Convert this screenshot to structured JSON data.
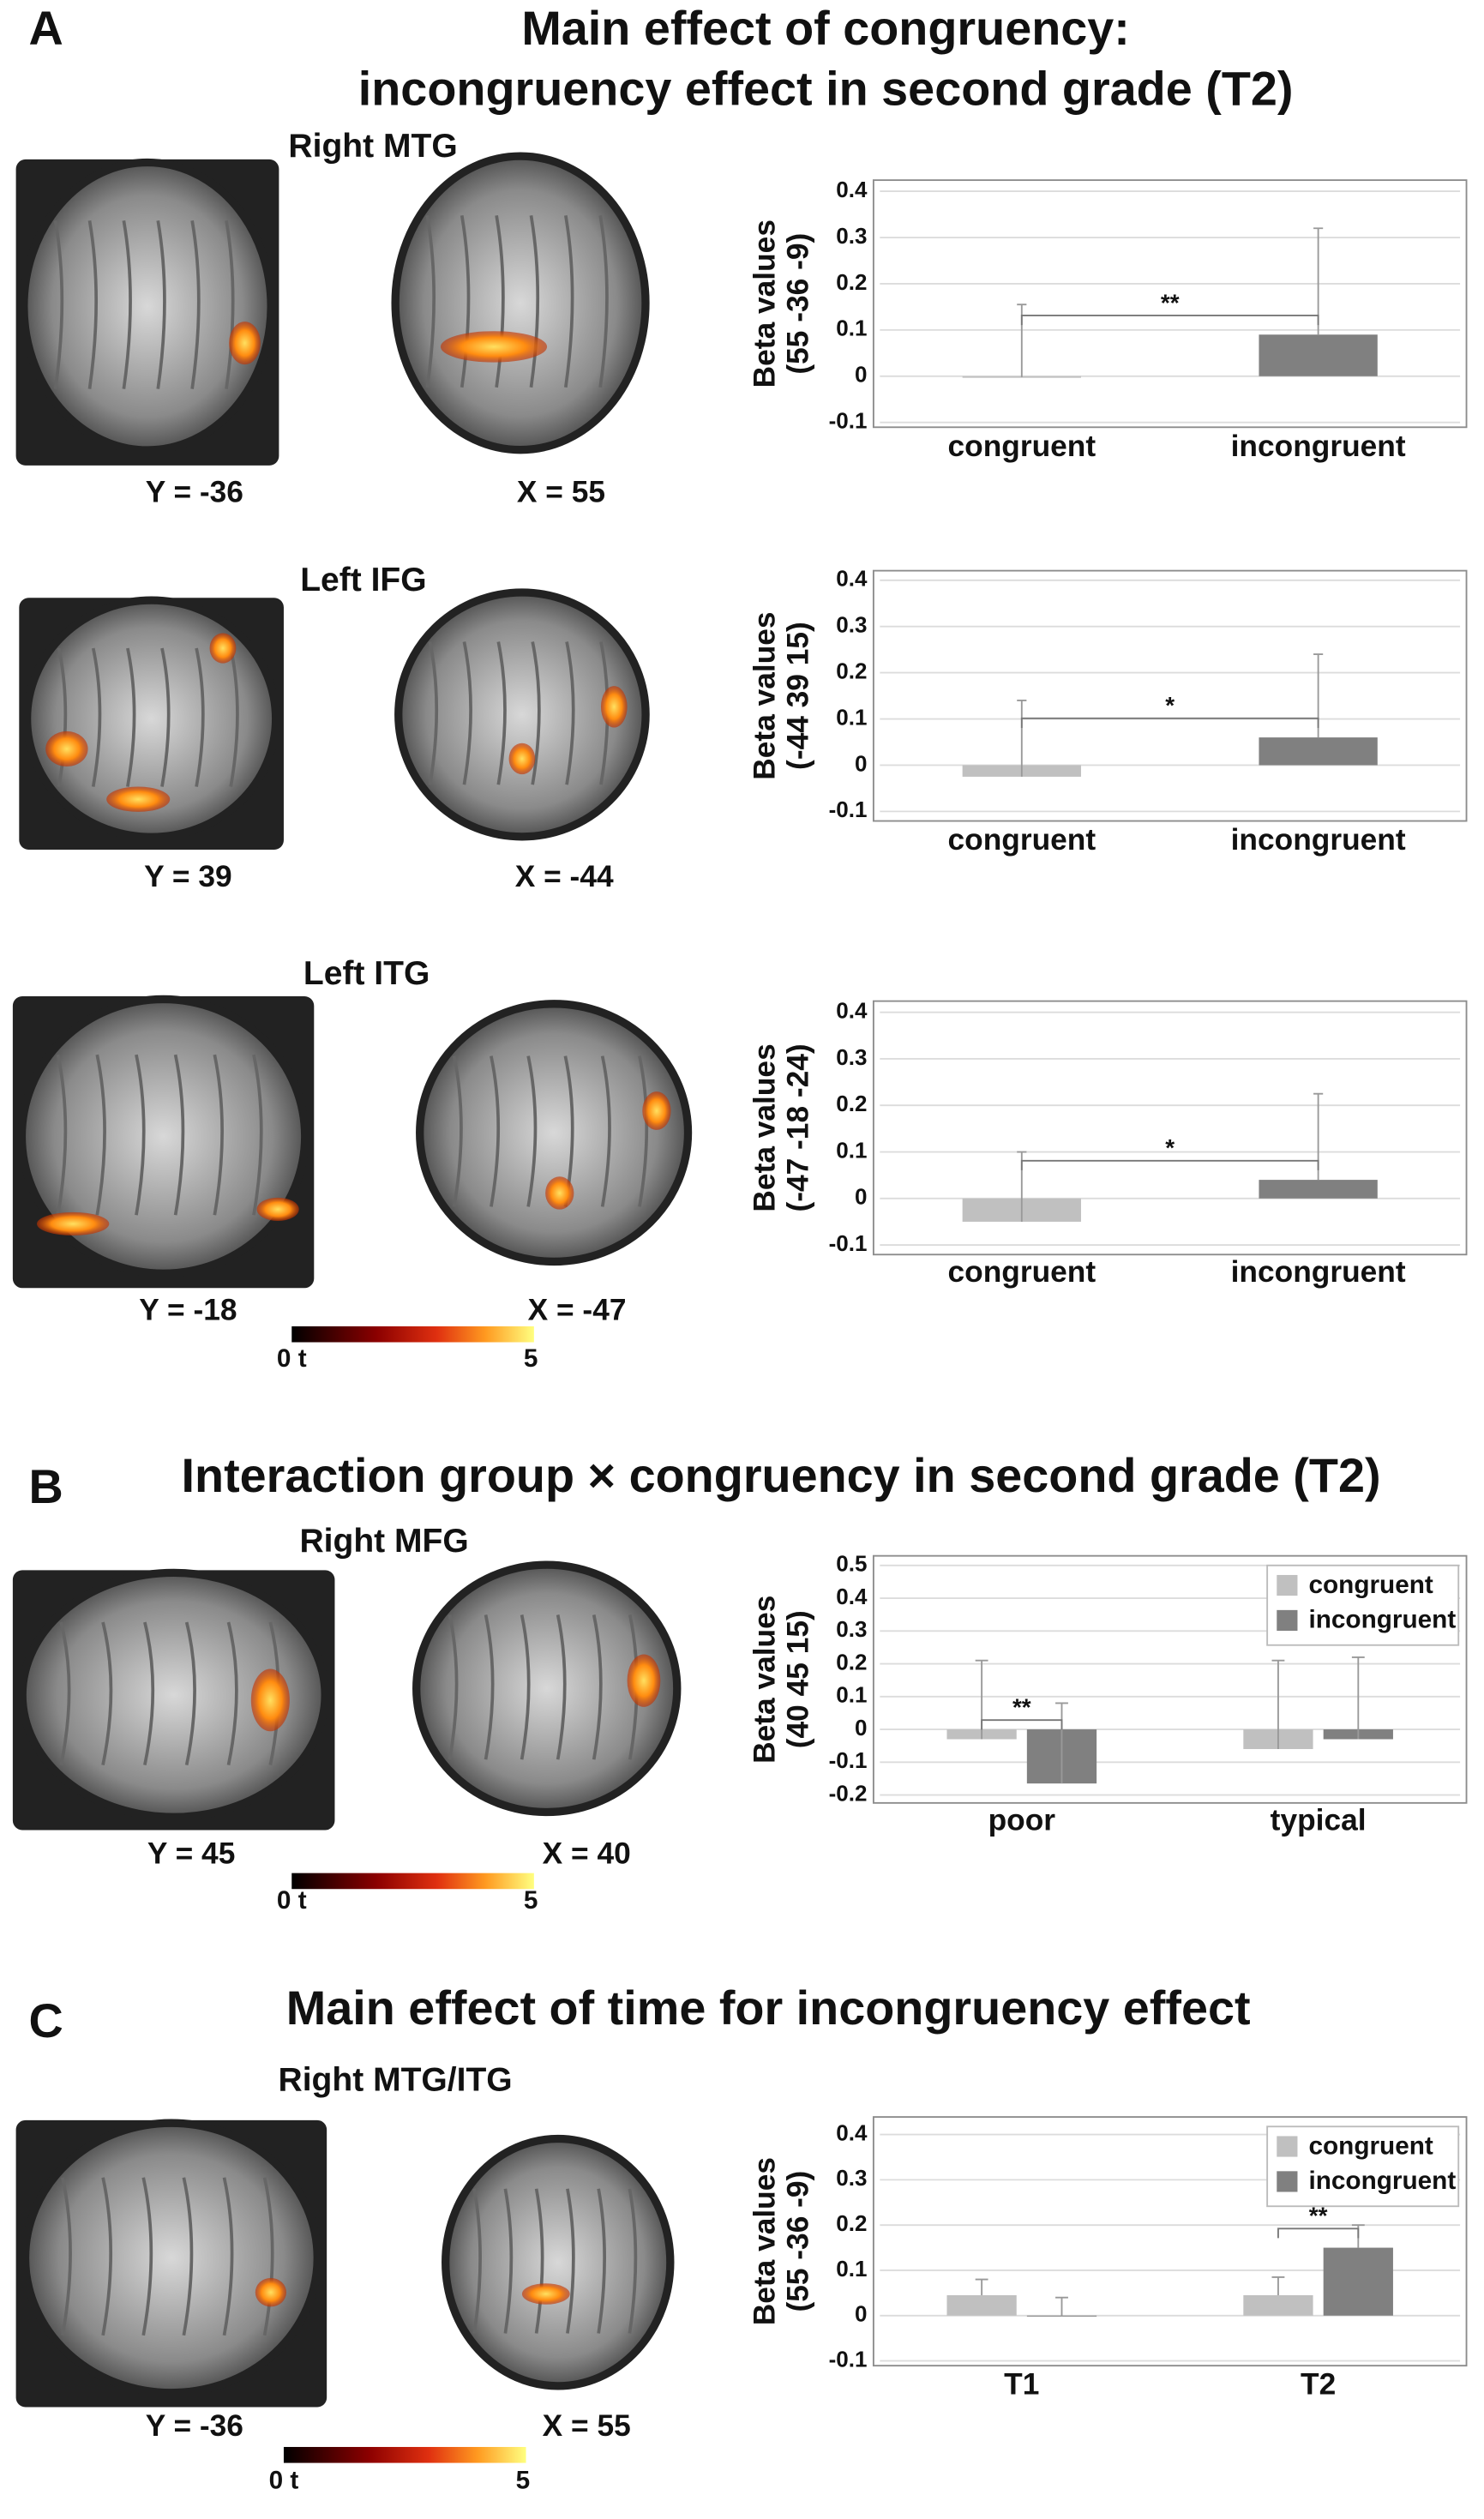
{
  "panels": [
    {
      "letter": "A",
      "title": [
        "Main effect of congruency:",
        "incongruency effect in second grade (T2)"
      ],
      "rows": [
        {
          "region": "Right MTG",
          "coronal": "Y = -36",
          "sagittal": "X = 55"
        },
        {
          "region": "Left IFG",
          "coronal": "Y = 39",
          "sagittal": "X = -44"
        },
        {
          "region": "Left ITG",
          "coronal": "Y = -18",
          "sagittal": "X = -47"
        }
      ],
      "colorbar": {
        "min": "0 t",
        "max": "5"
      }
    },
    {
      "letter": "B",
      "title": [
        "Interaction group × congruency in second grade (T2)"
      ],
      "rows": [
        {
          "region": "Right MFG",
          "coronal": "Y = 45",
          "sagittal": "X = 40"
        }
      ],
      "colorbar": {
        "min": "0 t",
        "max": "5"
      }
    },
    {
      "letter": "C",
      "title": [
        "Main effect of time for incongruency effect"
      ],
      "rows": [
        {
          "region": "Right MTG/ITG",
          "coronal": "Y = -36",
          "sagittal": "X = 55"
        }
      ],
      "colorbar": {
        "min": "0 t",
        "max": "5"
      }
    }
  ],
  "chart_data": [
    {
      "type": "bar",
      "ylabel": [
        "Beta values",
        "(55 -36 -9)"
      ],
      "categories": [
        "congruent",
        "incongruent"
      ],
      "values": [
        -0.002,
        0.09
      ],
      "errors": [
        0.157,
        0.23
      ],
      "colors": [
        "#c0c0c0",
        "#808080"
      ],
      "ylim": [
        -0.1,
        0.4
      ],
      "yticks": [
        -0.1,
        0,
        0.1,
        0.2,
        0.3,
        0.4
      ],
      "grid": true,
      "significance": "**"
    },
    {
      "type": "bar",
      "ylabel": [
        "Beta values",
        "(-44  39 15)"
      ],
      "categories": [
        "congruent",
        "incongruent"
      ],
      "values": [
        -0.025,
        0.06
      ],
      "errors": [
        0.165,
        0.18
      ],
      "colors": [
        "#c0c0c0",
        "#808080"
      ],
      "ylim": [
        -0.1,
        0.4
      ],
      "yticks": [
        -0.1,
        0,
        0.1,
        0.2,
        0.3,
        0.4
      ],
      "grid": true,
      "significance": "*"
    },
    {
      "type": "bar",
      "ylabel": [
        "Beta values",
        "(-47 -18 -24)"
      ],
      "categories": [
        "congruent",
        "incongruent"
      ],
      "values": [
        -0.05,
        0.04
      ],
      "errors": [
        0.15,
        0.185
      ],
      "colors": [
        "#c0c0c0",
        "#808080"
      ],
      "ylim": [
        -0.1,
        0.4
      ],
      "yticks": [
        -0.1,
        0,
        0.1,
        0.2,
        0.3,
        0.4
      ],
      "grid": true,
      "significance": "*"
    },
    {
      "type": "bar",
      "ylabel": [
        "Beta values",
        "(40 45 15)"
      ],
      "categories": [
        "poor",
        "typical"
      ],
      "series": [
        {
          "name": "congruent",
          "color": "#c0c0c0",
          "values": [
            -0.03,
            -0.06
          ],
          "errors": [
            0.24,
            0.27
          ]
        },
        {
          "name": "incongruent",
          "color": "#808080",
          "values": [
            -0.165,
            -0.03
          ],
          "errors": [
            0.245,
            0.25
          ]
        }
      ],
      "ylim": [
        -0.2,
        0.5
      ],
      "yticks": [
        -0.2,
        -0.1,
        0,
        0.1,
        0.2,
        0.3,
        0.4,
        0.5
      ],
      "grid": true,
      "legend": "top-right",
      "significance": "**",
      "significant_category": 0
    },
    {
      "type": "bar",
      "ylabel": [
        "Beta values",
        "(55 -36 -9)"
      ],
      "categories": [
        "T1",
        "T2"
      ],
      "series": [
        {
          "name": "congruent",
          "color": "#c0c0c0",
          "values": [
            0.045,
            0.045
          ],
          "errors": [
            0.035,
            0.04
          ]
        },
        {
          "name": "incongruent",
          "color": "#808080",
          "values": [
            -0.002,
            0.15
          ],
          "errors": [
            0.042,
            0.05
          ]
        }
      ],
      "ylim": [
        -0.1,
        0.4
      ],
      "yticks": [
        -0.1,
        0,
        0.1,
        0.2,
        0.3,
        0.4
      ],
      "grid": true,
      "legend": "top-right",
      "significance": "**",
      "significant_category": 1
    }
  ]
}
